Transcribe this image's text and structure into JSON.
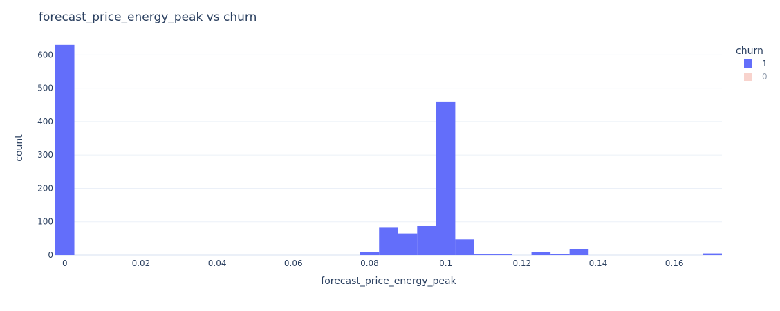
{
  "chart_data": {
    "type": "bar",
    "title": "forecast_price_energy_peak vs churn",
    "xlabel": "forecast_price_energy_peak",
    "ylabel": "count",
    "xlim": [
      -0.0025,
      0.1725
    ],
    "ylim": [
      0,
      640
    ],
    "x_ticks": [
      0,
      0.02,
      0.04,
      0.06,
      0.08,
      0.1,
      0.12,
      0.14,
      0.16
    ],
    "x_tick_labels": [
      "0",
      "0.02",
      "0.04",
      "0.06",
      "0.08",
      "0.1",
      "0.12",
      "0.14",
      "0.16"
    ],
    "y_ticks": [
      0,
      100,
      200,
      300,
      400,
      500,
      600
    ],
    "y_tick_labels": [
      "0",
      "100",
      "200",
      "300",
      "400",
      "500",
      "600"
    ],
    "bin_width": 0.005,
    "grid": true,
    "legend": {
      "title": "churn",
      "position": "top-right",
      "entries": [
        {
          "label": "1",
          "color": "#636efa",
          "visible": true
        },
        {
          "label": "0",
          "color": "#f2a79c",
          "visible": false
        }
      ]
    },
    "series": [
      {
        "name": "1",
        "color": "#636efa",
        "bins": [
          {
            "x0": -0.0025,
            "x1": 0.0025,
            "count": 630
          },
          {
            "x0": 0.0775,
            "x1": 0.0825,
            "count": 10
          },
          {
            "x0": 0.0825,
            "x1": 0.0875,
            "count": 82
          },
          {
            "x0": 0.0875,
            "x1": 0.0925,
            "count": 65
          },
          {
            "x0": 0.0925,
            "x1": 0.0975,
            "count": 87
          },
          {
            "x0": 0.0975,
            "x1": 0.1025,
            "count": 460
          },
          {
            "x0": 0.1025,
            "x1": 0.1075,
            "count": 47
          },
          {
            "x0": 0.1075,
            "x1": 0.1125,
            "count": 2
          },
          {
            "x0": 0.1125,
            "x1": 0.1175,
            "count": 2
          },
          {
            "x0": 0.1225,
            "x1": 0.1275,
            "count": 10
          },
          {
            "x0": 0.1275,
            "x1": 0.1325,
            "count": 4
          },
          {
            "x0": 0.1325,
            "x1": 0.1375,
            "count": 17
          },
          {
            "x0": 0.1675,
            "x1": 0.1725,
            "count": 5
          }
        ]
      }
    ]
  }
}
